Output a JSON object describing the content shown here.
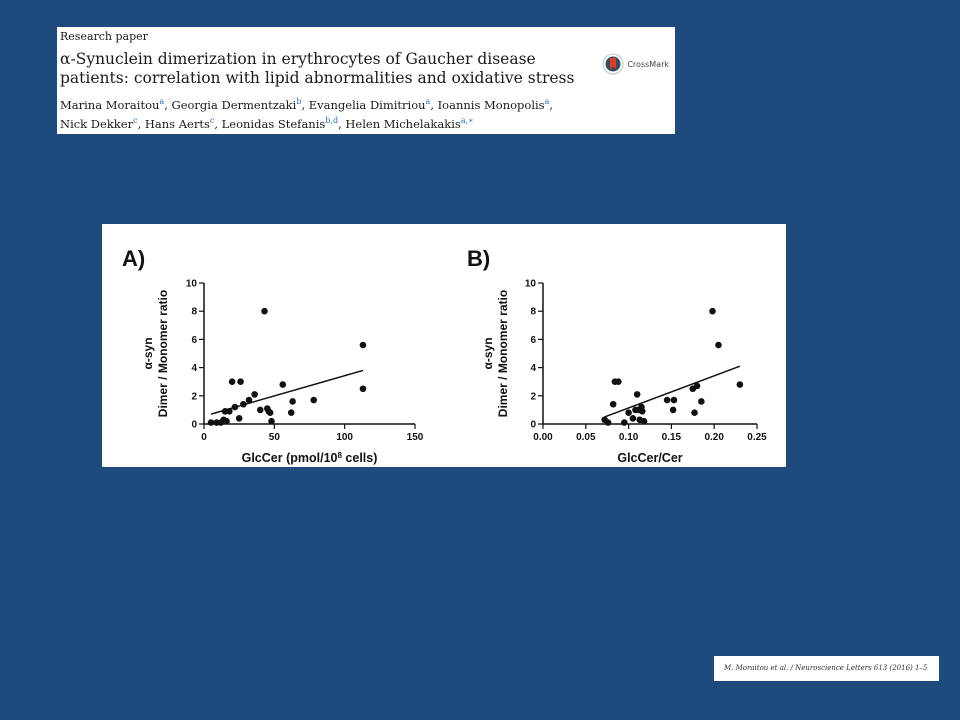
{
  "paper": {
    "kind": "Research paper",
    "title": "α-Synuclein dimerization in erythrocytes of Gaucher disease patients: correlation with lipid abnormalities and oxidative stress",
    "authors_line1": [
      {
        "name": "Marina Moraitou",
        "aff": "a",
        "sep": ", "
      },
      {
        "name": "Georgia Dermentzaki",
        "aff": "b",
        "sep": ", "
      },
      {
        "name": "Evangelia Dimitriou",
        "aff": "a",
        "sep": ", "
      },
      {
        "name": "Ioannis Monopolis",
        "aff": "a",
        "sep": ","
      }
    ],
    "authors_line2": [
      {
        "name": "Nick Dekker",
        "aff": "c",
        "sep": ", "
      },
      {
        "name": "Hans Aerts",
        "aff": "c",
        "sep": ", "
      },
      {
        "name": "Leonidas Stefanis",
        "aff": "b,d",
        "sep": ", "
      },
      {
        "name": "Helen Michelakakis",
        "aff": "a,∗",
        "sep": ""
      }
    ],
    "crossmark_label": "CrossMark",
    "citation": "M. Moraitou et al. / Neuroscience Letters 613 (2016) 1–5"
  },
  "colors": {
    "background": "#1f4a7c",
    "panel": "#ffffff",
    "ink": "#111111",
    "crossmark_red": "#d9402b"
  },
  "chart_data": [
    {
      "type": "scatter",
      "panel_label": "A)",
      "xlabel": "GlcCer (pmol/10",
      "xlabel_sup": "8",
      "xlabel_end": " cells)",
      "ylabel_line1": "α-syn",
      "ylabel_line2": "Dimer / Monomer ratio",
      "xlim": [
        0,
        150
      ],
      "ylim": [
        0,
        10
      ],
      "xticks": [
        0,
        50,
        100,
        150
      ],
      "yticks": [
        0,
        2,
        4,
        6,
        8,
        10
      ],
      "x": [
        5,
        9,
        12,
        14,
        15,
        16,
        18,
        20,
        22,
        25,
        26,
        28,
        32,
        36,
        40,
        43,
        45,
        46,
        47,
        48,
        56,
        62,
        63,
        78,
        113,
        113
      ],
      "y": [
        0.1,
        0.1,
        0.1,
        0.3,
        0.9,
        0.2,
        0.9,
        3.0,
        1.2,
        0.4,
        3.0,
        1.4,
        1.7,
        2.1,
        1.0,
        8.0,
        1.1,
        0.9,
        0.8,
        0.2,
        2.8,
        0.8,
        1.6,
        1.7,
        5.6,
        2.5
      ],
      "fit": {
        "x": [
          5,
          113
        ],
        "y": [
          0.7,
          3.8
        ]
      },
      "grid": false
    },
    {
      "type": "scatter",
      "panel_label": "B)",
      "xlabel": "GlcCer/Cer",
      "ylabel_line1": "α-syn",
      "ylabel_line2": "Dimer / Monomer ratio",
      "xlim": [
        0.0,
        0.25
      ],
      "ylim": [
        0,
        10
      ],
      "xticks": [
        "0.00",
        "0.05",
        "0.10",
        "0.15",
        "0.20",
        "0.25"
      ],
      "yticks": [
        0,
        2,
        4,
        6,
        8,
        10
      ],
      "x": [
        0.072,
        0.076,
        0.082,
        0.084,
        0.088,
        0.095,
        0.1,
        0.105,
        0.108,
        0.11,
        0.112,
        0.113,
        0.115,
        0.116,
        0.118,
        0.145,
        0.152,
        0.153,
        0.175,
        0.177,
        0.18,
        0.185,
        0.198,
        0.205,
        0.23
      ],
      "y": [
        0.3,
        0.1,
        1.4,
        3.0,
        3.0,
        0.1,
        0.8,
        0.4,
        1.0,
        2.1,
        1.0,
        0.3,
        1.2,
        0.9,
        0.2,
        1.7,
        1.0,
        1.7,
        2.5,
        0.8,
        2.7,
        1.6,
        8.0,
        5.6,
        2.8
      ],
      "fit": {
        "x": [
          0.072,
          0.23
        ],
        "y": [
          0.5,
          4.1
        ]
      },
      "grid": false
    }
  ]
}
